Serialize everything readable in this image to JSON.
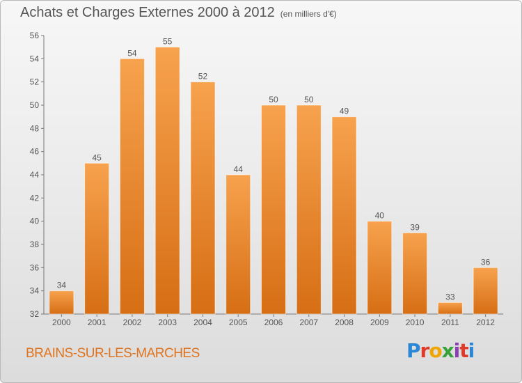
{
  "header": {
    "title": "Achats et Charges Externes 2000 à 2012",
    "subtitle": "(en milliers d'€)"
  },
  "footer": {
    "commune": "BRAINS-SUR-LES-MARCHES",
    "logo_text": "Proxiti"
  },
  "colors": {
    "bar_light": "#f7a24e",
    "bar_dark": "#d66e14",
    "text": "#555555",
    "commune": "#e0731c"
  },
  "chart_data": {
    "type": "bar",
    "title": "Achats et Charges Externes 2000 à 2012",
    "subtitle": "(en milliers d'€)",
    "xlabel": "",
    "ylabel": "",
    "categories": [
      "2000",
      "2001",
      "2002",
      "2003",
      "2004",
      "2005",
      "2006",
      "2007",
      "2008",
      "2009",
      "2010",
      "2011",
      "2012"
    ],
    "values": [
      34,
      45,
      54,
      55,
      52,
      44,
      50,
      50,
      49,
      40,
      39,
      33,
      36
    ],
    "ylim": [
      32,
      56
    ],
    "yticks": [
      32,
      34,
      36,
      38,
      40,
      42,
      44,
      46,
      48,
      50,
      52,
      54,
      56
    ],
    "grid": false,
    "data_labels": true
  }
}
